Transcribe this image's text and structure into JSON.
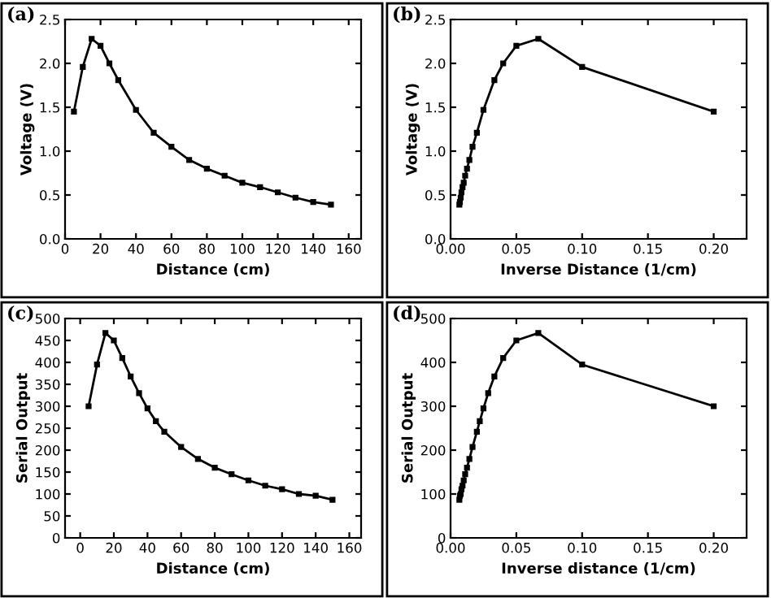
{
  "chart_data": [
    {
      "type": "line",
      "annotations": [
        "(a)"
      ],
      "xlabel": "Distance (cm)",
      "ylabel": "Voltage (V)",
      "marker": "square",
      "line_style": "solid",
      "grid": false,
      "legend": false,
      "x": [
        5,
        10,
        15,
        20,
        25,
        30,
        40,
        50,
        60,
        70,
        80,
        90,
        100,
        110,
        120,
        130,
        140,
        150
      ],
      "series": [
        {
          "color": "#000000",
          "values": [
            1.45,
            1.96,
            2.28,
            2.2,
            2.0,
            1.81,
            1.47,
            1.21,
            1.05,
            0.9,
            0.8,
            0.72,
            0.64,
            0.59,
            0.53,
            0.47,
            0.42,
            0.39
          ]
        }
      ],
      "xlim": [
        0,
        167
      ],
      "xticks": [
        0,
        20,
        40,
        60,
        80,
        100,
        120,
        140,
        160
      ],
      "ylim": [
        0,
        2.5
      ],
      "yticks": [
        {
          "value": 0,
          "label": "0.0"
        },
        0.5,
        {
          "value": 1,
          "label": "1.0"
        },
        1.5,
        {
          "value": 2,
          "label": "2.0"
        },
        2.5
      ]
    },
    {
      "type": "line",
      "annotations": [
        "(b)"
      ],
      "xlabel": "Inverse Distance (1/cm)",
      "ylabel": "Voltage (V)",
      "marker": "square",
      "line_style": "solid",
      "grid": false,
      "legend": false,
      "x": [
        0.2,
        0.1,
        0.0667,
        0.05,
        0.04,
        0.0333,
        0.025,
        0.02,
        0.0167,
        0.0143,
        0.0125,
        0.0111,
        0.01,
        0.0091,
        0.0083,
        0.0077,
        0.0071,
        0.0067
      ],
      "series": [
        {
          "color": "#000000",
          "values": [
            1.45,
            1.96,
            2.28,
            2.2,
            2.0,
            1.81,
            1.47,
            1.21,
            1.05,
            0.9,
            0.8,
            0.72,
            0.64,
            0.59,
            0.53,
            0.47,
            0.42,
            0.39
          ]
        }
      ],
      "xlim": [
        0,
        0.225
      ],
      "xticks": [
        {
          "value": 0,
          "label": "0.00"
        },
        0.05,
        {
          "value": 0.1,
          "label": "0.10"
        },
        0.15,
        {
          "value": 0.2,
          "label": "0.20"
        }
      ],
      "ylim": [
        0,
        2.5
      ],
      "yticks": [
        {
          "value": 0,
          "label": "0.0"
        },
        0.5,
        {
          "value": 1,
          "label": "1.0"
        },
        1.5,
        {
          "value": 2,
          "label": "2.0"
        },
        2.5
      ]
    },
    {
      "type": "line",
      "annotations": [
        "(c)"
      ],
      "xlabel": "Distance (cm)",
      "ylabel": "Serial Output",
      "marker": "square",
      "line_style": "solid",
      "grid": false,
      "legend": false,
      "x": [
        5,
        10,
        15,
        20,
        25,
        30,
        35,
        40,
        45,
        50,
        60,
        70,
        80,
        90,
        100,
        110,
        120,
        130,
        140,
        150
      ],
      "series": [
        {
          "color": "#000000",
          "values": [
            300,
            395,
            467,
            450,
            410,
            368,
            330,
            295,
            266,
            242,
            207,
            180,
            160,
            145,
            131,
            119,
            111,
            100,
            96,
            87
          ]
        }
      ],
      "xlim": [
        -9,
        167
      ],
      "xticks": [
        0,
        20,
        40,
        60,
        80,
        100,
        120,
        140,
        160
      ],
      "ylim": [
        0,
        500
      ],
      "yticks": [
        0,
        50,
        100,
        150,
        200,
        250,
        300,
        350,
        400,
        450,
        500
      ]
    },
    {
      "type": "line",
      "annotations": [
        "(d)"
      ],
      "xlabel": "Inverse distance (1/cm)",
      "ylabel": "Serial Output",
      "marker": "square",
      "line_style": "solid",
      "grid": false,
      "legend": false,
      "x": [
        0.2,
        0.1,
        0.0667,
        0.05,
        0.04,
        0.0333,
        0.0286,
        0.025,
        0.0222,
        0.02,
        0.0167,
        0.0143,
        0.0125,
        0.0111,
        0.01,
        0.0091,
        0.0083,
        0.0077,
        0.0071,
        0.0067
      ],
      "series": [
        {
          "color": "#000000",
          "values": [
            300,
            395,
            467,
            450,
            410,
            368,
            330,
            295,
            266,
            242,
            207,
            180,
            160,
            145,
            131,
            119,
            111,
            100,
            96,
            87
          ]
        }
      ],
      "xlim": [
        0,
        0.225
      ],
      "xticks": [
        {
          "value": 0,
          "label": "0.00"
        },
        0.05,
        {
          "value": 0.1,
          "label": "0.10"
        },
        0.15,
        {
          "value": 0.2,
          "label": "0.20"
        }
      ],
      "ylim": [
        0,
        500
      ],
      "yticks": [
        0,
        100,
        200,
        300,
        400,
        500
      ]
    }
  ]
}
